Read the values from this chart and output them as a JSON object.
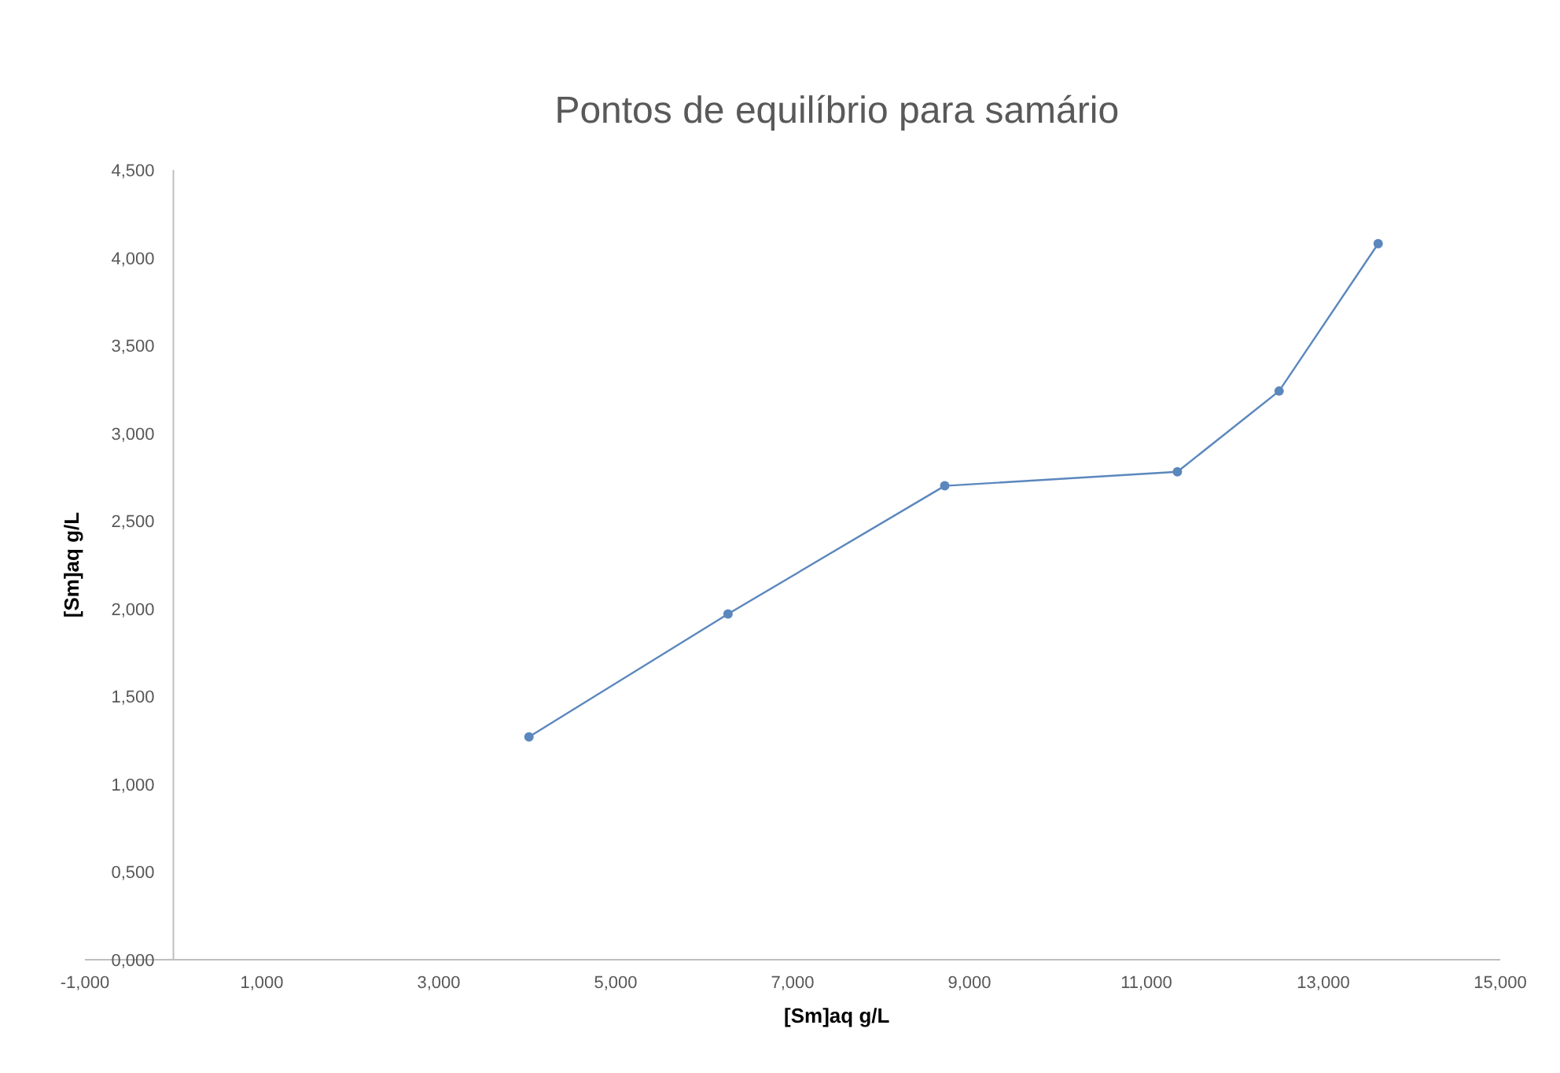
{
  "chart_data": {
    "type": "line",
    "title": "Pontos de equilíbrio para samário",
    "xlabel": "[Sm]aq g/L",
    "ylabel": "[Sm]aq g/L",
    "x": [
      4.02,
      6.27,
      8.72,
      11.35,
      12.5,
      13.62
    ],
    "series": [
      {
        "color": "#5b87bd",
        "values": [
          1.27,
          1.97,
          2.7,
          2.78,
          3.24,
          4.08
        ]
      }
    ],
    "xlim": [
      -1,
      15
    ],
    "xticks": [
      {
        "value": -1,
        "label": "-1,000"
      },
      {
        "value": 1,
        "label": "1,000"
      },
      {
        "value": 3,
        "label": "3,000"
      },
      {
        "value": 5,
        "label": "5,000"
      },
      {
        "value": 7,
        "label": "7,000"
      },
      {
        "value": 9,
        "label": "9,000"
      },
      {
        "value": 11,
        "label": "11,000"
      },
      {
        "value": 13,
        "label": "13,000"
      },
      {
        "value": 15,
        "label": "15,000"
      }
    ],
    "ylim": [
      0,
      4.5
    ],
    "yticks": [
      {
        "value": 0,
        "label": "0,000"
      },
      {
        "value": 0.5,
        "label": "0,500"
      },
      {
        "value": 1,
        "label": "1,000"
      },
      {
        "value": 1.5,
        "label": "1,500"
      },
      {
        "value": 2,
        "label": "2,000"
      },
      {
        "value": 2.5,
        "label": "2,500"
      },
      {
        "value": 3,
        "label": "3,000"
      },
      {
        "value": 3.5,
        "label": "3,500"
      },
      {
        "value": 4,
        "label": "4,000"
      },
      {
        "value": 4.5,
        "label": "4,500"
      }
    ],
    "grid": false,
    "marker": "circle",
    "line_style": "solid"
  }
}
